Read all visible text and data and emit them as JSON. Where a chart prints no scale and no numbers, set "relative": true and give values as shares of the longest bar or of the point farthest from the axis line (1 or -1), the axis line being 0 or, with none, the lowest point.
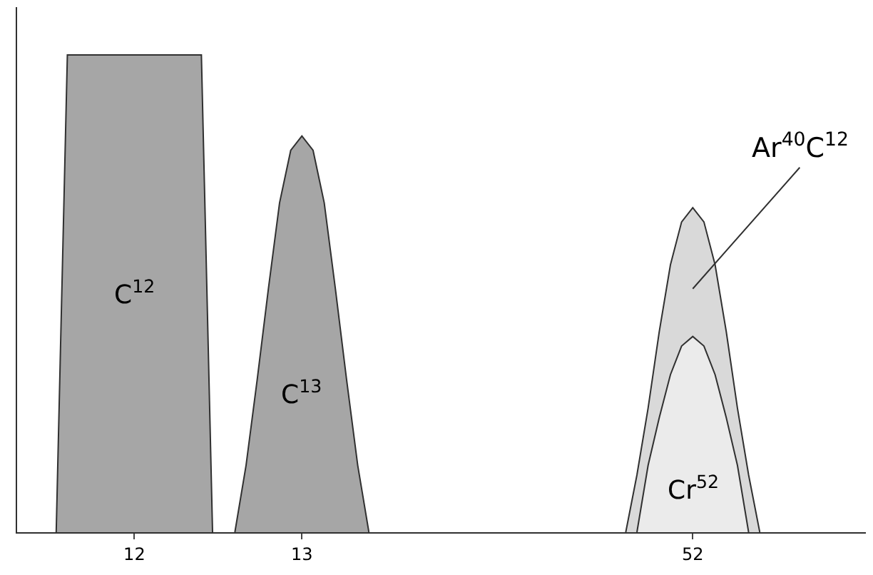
{
  "chart_data": {
    "type": "area",
    "relative": true,
    "legend": false,
    "categories": [
      null,
      null,
      null,
      null,
      null,
      null,
      null,
      null,
      null,
      null,
      "12",
      null,
      null,
      null,
      null,
      null,
      null,
      null,
      null,
      null,
      null,
      null,
      null,
      null,
      null,
      "13",
      null,
      null,
      null,
      null,
      null,
      null,
      null,
      null,
      null,
      null,
      null,
      null,
      null,
      null,
      null,
      null,
      null,
      null,
      null,
      null,
      null,
      null,
      null,
      null,
      null,
      null,
      null,
      null,
      null,
      null,
      null,
      null,
      null,
      null,
      "52",
      null,
      null,
      null,
      null,
      null,
      null,
      null,
      null,
      null,
      null,
      null,
      null,
      null,
      null,
      null
    ],
    "series": [
      {
        "name": "C$^{12}$",
        "color": "#a6a6a6",
        "values": [
          null,
          null,
          null,
          0,
          1,
          1,
          1,
          1,
          1,
          1,
          1,
          1,
          1,
          1,
          1,
          1,
          1,
          0,
          null,
          null,
          null,
          null,
          null,
          null,
          null,
          null,
          null,
          null,
          null,
          null,
          null,
          null,
          null,
          null,
          null,
          null,
          null,
          null,
          null,
          null,
          null,
          null,
          null,
          null,
          null,
          null,
          null,
          null,
          null,
          null,
          null,
          null,
          null,
          null,
          null,
          null,
          null,
          null,
          null,
          null,
          null,
          null,
          null,
          null,
          null,
          null,
          null,
          null,
          null,
          null,
          null,
          null,
          null,
          null,
          null,
          null
        ]
      },
      {
        "name": "C$^{13}$",
        "color": "#a6a6a6",
        "values": [
          null,
          null,
          null,
          null,
          null,
          null,
          null,
          null,
          null,
          null,
          null,
          null,
          null,
          null,
          null,
          null,
          null,
          null,
          null,
          0,
          0.14,
          0.32,
          0.51,
          0.69,
          0.8,
          0.83,
          0.8,
          0.69,
          0.51,
          0.32,
          0.14,
          0,
          null,
          null,
          null,
          null,
          null,
          null,
          null,
          null,
          null,
          null,
          null,
          null,
          null,
          null,
          null,
          null,
          null,
          null,
          null,
          null,
          null,
          null,
          null,
          null,
          null,
          null,
          null,
          null,
          null,
          null,
          null,
          null,
          null,
          null,
          null,
          null,
          null,
          null,
          null,
          null,
          null,
          null,
          null,
          null
        ]
      },
      {
        "name": "Ar$^{40}$C$^{12}$",
        "color": "#d9d9d9",
        "values": [
          null,
          null,
          null,
          null,
          null,
          null,
          null,
          null,
          null,
          null,
          null,
          null,
          null,
          null,
          null,
          null,
          null,
          null,
          null,
          null,
          null,
          null,
          null,
          null,
          null,
          null,
          null,
          null,
          null,
          null,
          null,
          null,
          null,
          null,
          null,
          null,
          null,
          null,
          null,
          null,
          null,
          null,
          null,
          null,
          null,
          null,
          null,
          null,
          null,
          null,
          null,
          null,
          null,
          null,
          0,
          0.12,
          0.26,
          0.42,
          0.56,
          0.65,
          0.68,
          0.65,
          0.56,
          0.42,
          0.26,
          0.12,
          0,
          null,
          null,
          null,
          null,
          null,
          null,
          null,
          null,
          null
        ]
      },
      {
        "name": "Cr$^{52}$",
        "color": "#ebebeb",
        "values": [
          null,
          null,
          null,
          null,
          null,
          null,
          null,
          null,
          null,
          null,
          null,
          null,
          null,
          null,
          null,
          null,
          null,
          null,
          null,
          null,
          null,
          null,
          null,
          null,
          null,
          null,
          null,
          null,
          null,
          null,
          null,
          null,
          null,
          null,
          null,
          null,
          null,
          null,
          null,
          null,
          null,
          null,
          null,
          null,
          null,
          null,
          null,
          null,
          null,
          null,
          null,
          null,
          null,
          null,
          null,
          0,
          0.14,
          0.24,
          0.33,
          0.39,
          0.41,
          0.39,
          0.33,
          0.24,
          0.14,
          0,
          null,
          null,
          null,
          null,
          null,
          null,
          null,
          null,
          null,
          null
        ]
      }
    ]
  }
}
